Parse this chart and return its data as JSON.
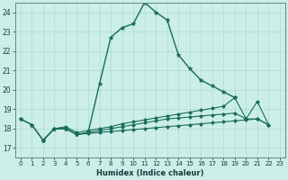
{
  "title": "",
  "xlabel": "Humidex (Indice chaleur)",
  "ylabel": "",
  "background_color": "#cceee8",
  "grid_color": "#aaddcc",
  "line_color": "#1a6b5a",
  "xlim": [
    -0.5,
    23.5
  ],
  "ylim": [
    16.5,
    24.5
  ],
  "yticks": [
    17,
    18,
    19,
    20,
    21,
    22,
    23,
    24
  ],
  "xticks": [
    0,
    1,
    2,
    3,
    4,
    5,
    6,
    7,
    8,
    9,
    10,
    11,
    12,
    13,
    14,
    15,
    16,
    17,
    18,
    19,
    20,
    21,
    22,
    23
  ],
  "series": [
    {
      "x": [
        0,
        1,
        2,
        3,
        4,
        5,
        6,
        7,
        8,
        9,
        10,
        11,
        12,
        13,
        14,
        15,
        16,
        17,
        18,
        19
      ],
      "y": [
        18.5,
        18.2,
        17.4,
        18.0,
        18.0,
        17.7,
        17.8,
        20.3,
        22.7,
        23.2,
        23.4,
        24.5,
        24.0,
        23.6,
        21.8,
        21.1,
        20.5,
        20.2,
        19.9,
        19.6
      ],
      "marker": "*",
      "markersize": 3.5,
      "linewidth": 1.0,
      "linestyle": "-"
    },
    {
      "x": [
        0,
        1,
        2,
        3,
        4,
        5,
        6,
        7,
        8,
        9,
        10,
        11,
        12,
        13,
        14,
        15,
        16,
        17,
        18,
        19,
        20,
        21,
        22
      ],
      "y": [
        18.5,
        18.2,
        17.4,
        18.0,
        18.1,
        17.8,
        17.9,
        18.0,
        18.1,
        18.25,
        18.35,
        18.45,
        18.55,
        18.65,
        18.75,
        18.85,
        18.95,
        19.05,
        19.15,
        19.6,
        18.5,
        19.4,
        18.2
      ],
      "marker": "D",
      "markersize": 2.0,
      "linewidth": 0.8,
      "linestyle": "-"
    },
    {
      "x": [
        2,
        3,
        4,
        5,
        6,
        7,
        8,
        9,
        10,
        11,
        12,
        13,
        14,
        15,
        16,
        17,
        18,
        19,
        20,
        21,
        22
      ],
      "y": [
        17.4,
        18.0,
        18.0,
        17.7,
        17.8,
        17.9,
        18.0,
        18.1,
        18.2,
        18.3,
        18.4,
        18.5,
        18.55,
        18.6,
        18.65,
        18.7,
        18.75,
        18.8,
        18.5,
        18.5,
        18.2
      ],
      "marker": "D",
      "markersize": 2.0,
      "linewidth": 0.8,
      "linestyle": "-"
    },
    {
      "x": [
        2,
        3,
        4,
        5,
        6,
        7,
        8,
        9,
        10,
        11,
        12,
        13,
        14,
        15,
        16,
        17,
        18,
        19,
        20,
        21,
        22
      ],
      "y": [
        17.4,
        18.0,
        18.0,
        17.7,
        17.75,
        17.8,
        17.85,
        17.9,
        17.95,
        18.0,
        18.05,
        18.1,
        18.15,
        18.2,
        18.25,
        18.3,
        18.35,
        18.4,
        18.45,
        18.5,
        18.2
      ],
      "marker": "D",
      "markersize": 2.0,
      "linewidth": 0.8,
      "linestyle": "-"
    }
  ]
}
